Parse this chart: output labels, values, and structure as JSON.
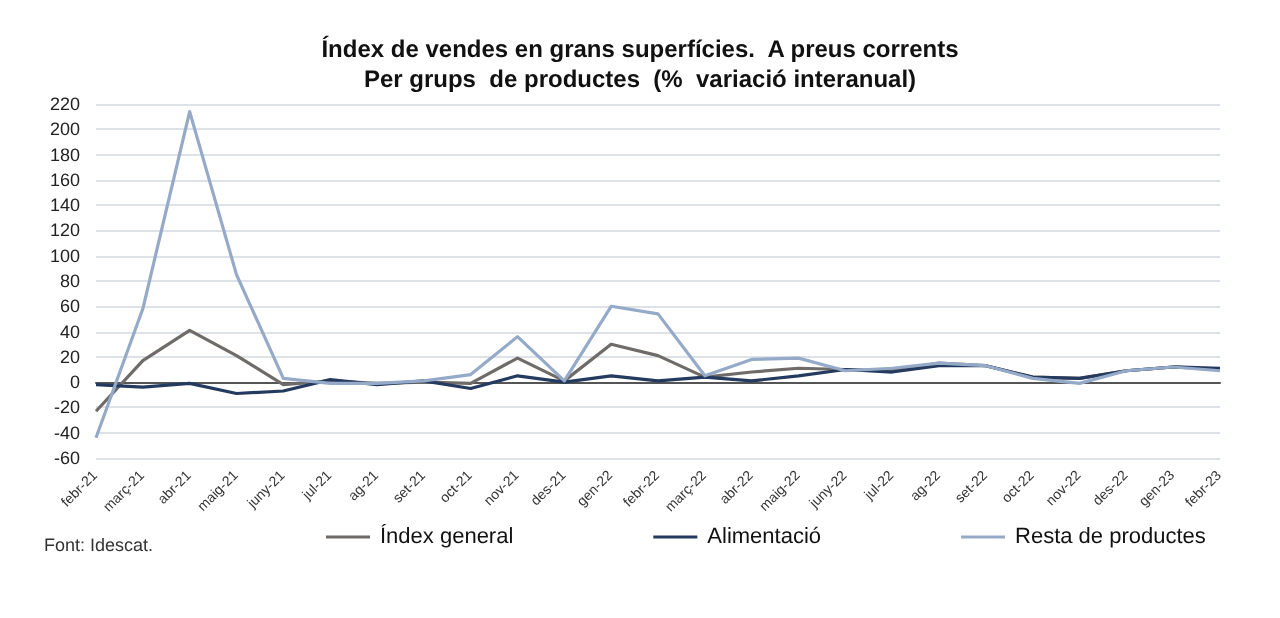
{
  "chart_data": {
    "type": "line",
    "title": "Índex de vendes en grans superfícies.  A preus corrents\nPer grups  de productes  (%  variació interanual)",
    "categories": [
      "febr-21",
      "març-21",
      "abr-21",
      "maig-21",
      "juny-21",
      "jul-21",
      "ag-21",
      "set-21",
      "oct-21",
      "nov-21",
      "des-21",
      "gen-22",
      "febr-22",
      "març-22",
      "abr-22",
      "maig-22",
      "juny-22",
      "jul-22",
      "ag-22",
      "set-22",
      "oct-22",
      "nov-22",
      "des-22",
      "gen-23",
      "febr-23"
    ],
    "series": [
      {
        "name": "Índex general",
        "color": "#6f6b68",
        "values": [
          -23,
          17,
          41,
          21,
          -2,
          1,
          -1,
          0,
          -1,
          19,
          1,
          30,
          21,
          4,
          8,
          11,
          10,
          9,
          15,
          13,
          4,
          3,
          9,
          12,
          10
        ]
      },
      {
        "name": "Alimentació",
        "color": "#243a5e",
        "values": [
          -2,
          -4,
          -1,
          -9,
          -7,
          2,
          -2,
          1,
          -5,
          5,
          0,
          5,
          1,
          4,
          1,
          5,
          10,
          8,
          13,
          13,
          4,
          3,
          9,
          12,
          11
        ]
      },
      {
        "name": "Resta de productes",
        "color": "#95a9c8",
        "values": [
          -44,
          58,
          214,
          85,
          3,
          -1,
          -1,
          1,
          6,
          36,
          1,
          60,
          54,
          5,
          18,
          19,
          9,
          11,
          15,
          13,
          3,
          -1,
          9,
          12,
          9
        ]
      }
    ],
    "ylim": [
      -60,
      220
    ],
    "yticks": [
      -60,
      -40,
      -20,
      0,
      20,
      40,
      60,
      80,
      100,
      120,
      140,
      160,
      180,
      200,
      220
    ],
    "grid": "y",
    "legend": "bottom",
    "marker": "none",
    "line_style": "solid",
    "annotations": [
      "Font: Idescat."
    ]
  }
}
